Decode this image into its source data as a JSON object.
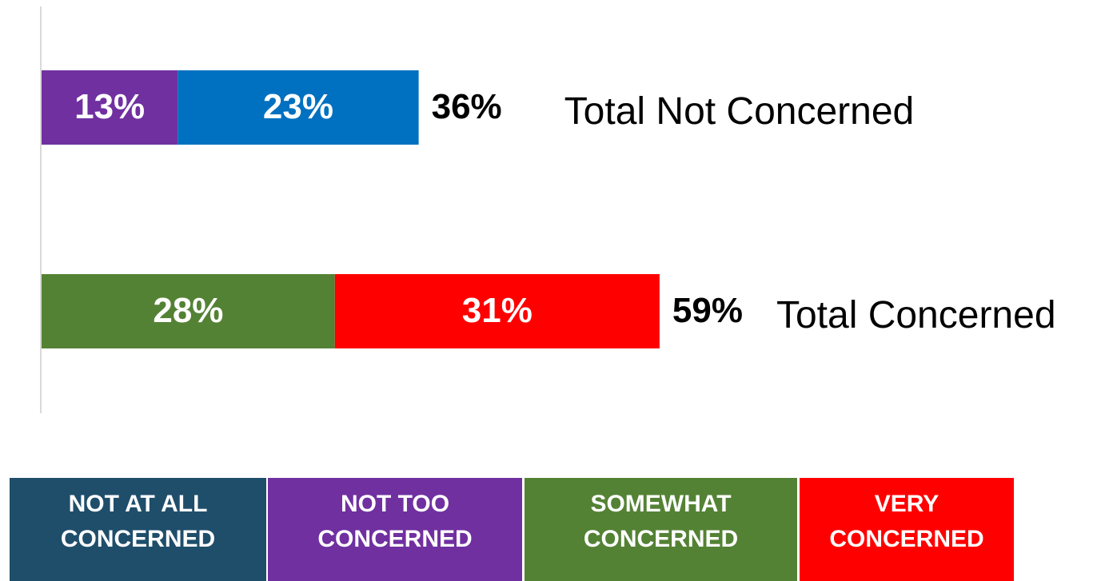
{
  "chart_data": {
    "type": "stacked-bar",
    "orientation": "horizontal",
    "xlim": [
      0,
      100
    ],
    "bars": [
      {
        "label": "Total Not Concerned",
        "total": 36,
        "total_label": "36%",
        "segments": [
          {
            "value": 13,
            "label": "13%",
            "color": "#7030a0"
          },
          {
            "value": 23,
            "label": "23%",
            "color": "#0070c0"
          }
        ]
      },
      {
        "label": "Total Concerned",
        "total": 59,
        "total_label": "59%",
        "segments": [
          {
            "value": 28,
            "label": "28%",
            "color": "#548235"
          },
          {
            "value": 31,
            "label": "31%",
            "color": "#ff0000"
          }
        ]
      }
    ],
    "legend": [
      {
        "lines": [
          "NOT AT ALL",
          "CONCERNED"
        ],
        "color": "#1f4e6b"
      },
      {
        "lines": [
          "NOT TOO",
          "CONCERNED"
        ],
        "color": "#7030a0"
      },
      {
        "lines": [
          "SOMEWHAT",
          "CONCERNED"
        ],
        "color": "#548235"
      },
      {
        "lines": [
          "VERY",
          "CONCERNED"
        ],
        "color": "#ff0000"
      }
    ]
  }
}
